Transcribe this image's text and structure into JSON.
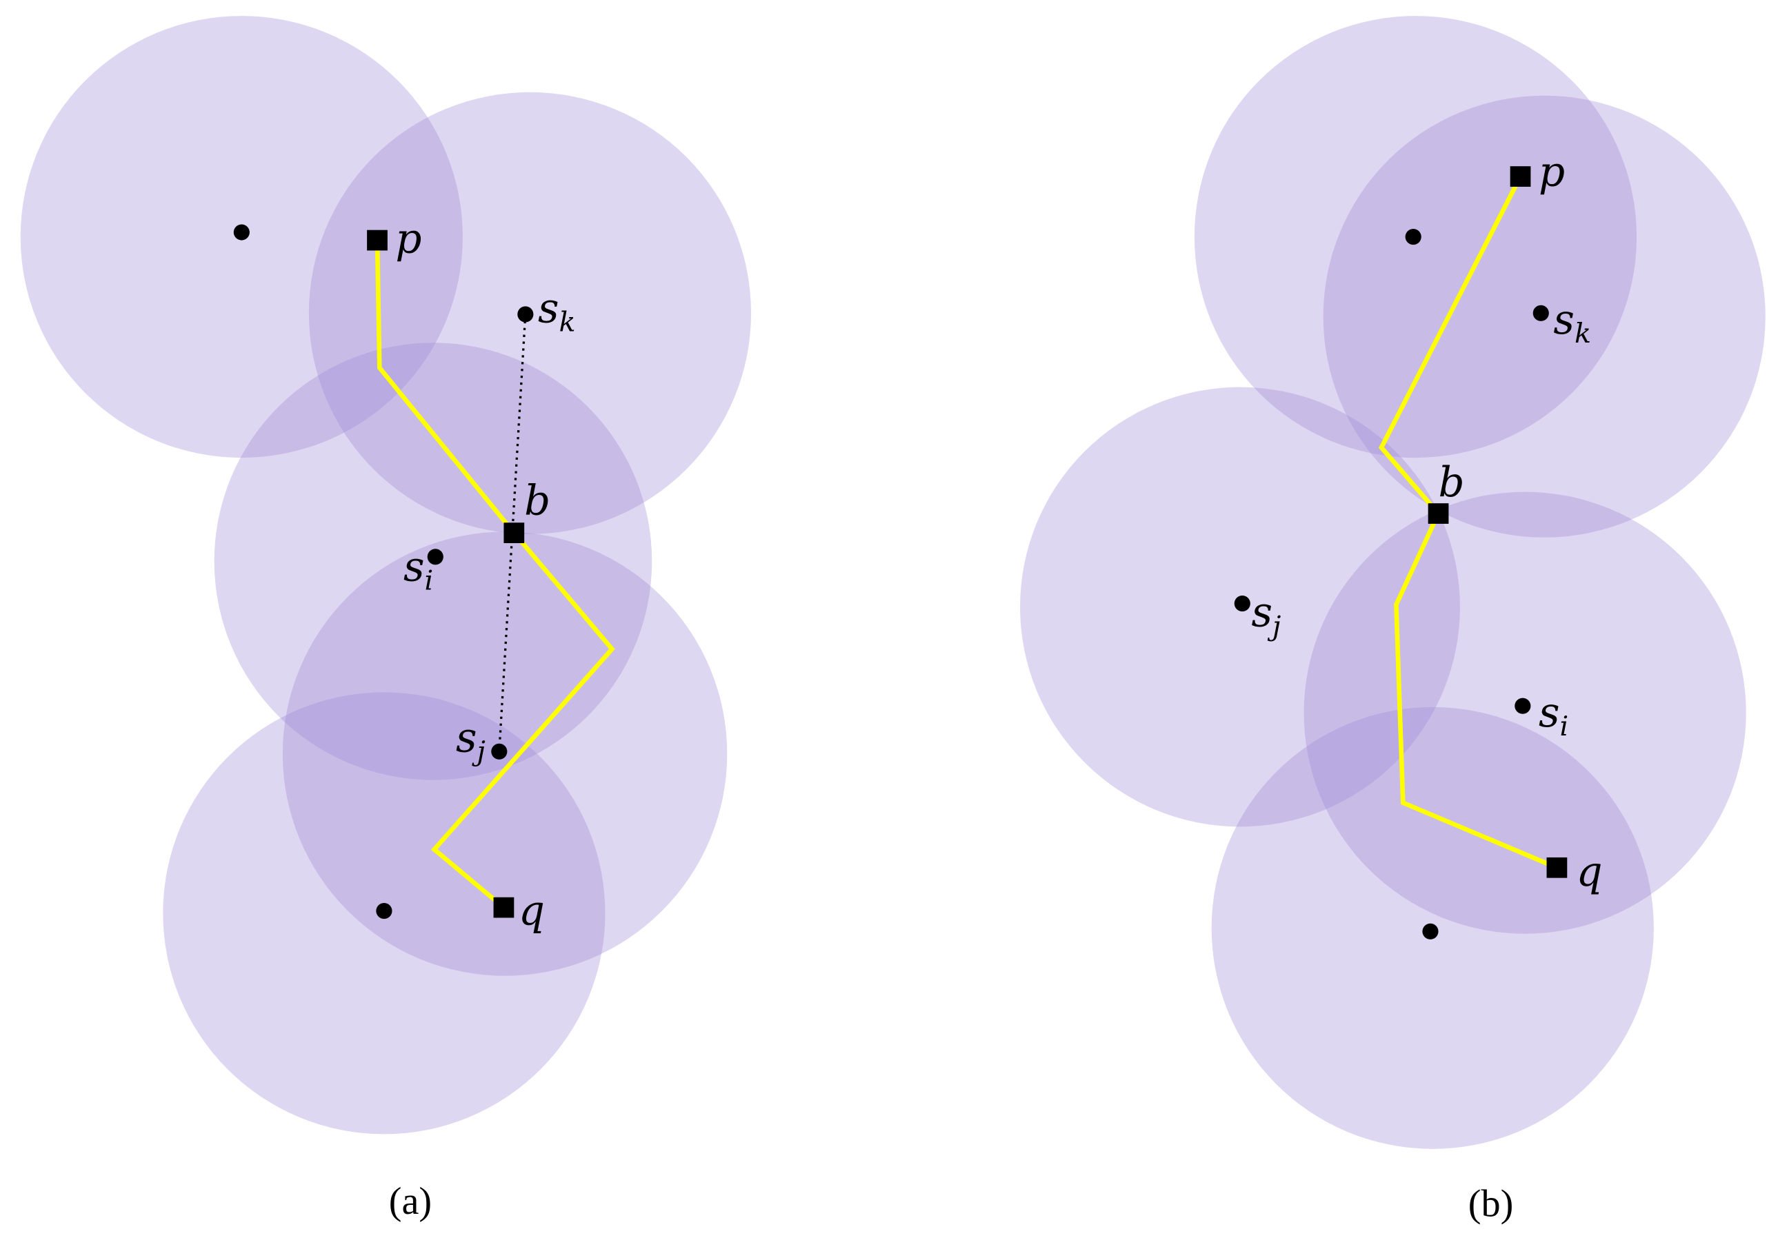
{
  "panels": [
    {
      "caption": "(a)",
      "labels": [
        {
          "text": "p"
        },
        {
          "text": "s",
          "sub": "k"
        },
        {
          "text": "b"
        },
        {
          "text": "s",
          "sub": "i"
        },
        {
          "text": "s",
          "sub": "j"
        },
        {
          "text": "q"
        }
      ]
    },
    {
      "caption": "(b)",
      "labels": [
        {
          "text": "p"
        },
        {
          "text": "s",
          "sub": "k"
        },
        {
          "text": "b"
        },
        {
          "text": "s",
          "sub": "j"
        },
        {
          "text": "s",
          "sub": "i"
        },
        {
          "text": "q"
        }
      ]
    }
  ]
}
